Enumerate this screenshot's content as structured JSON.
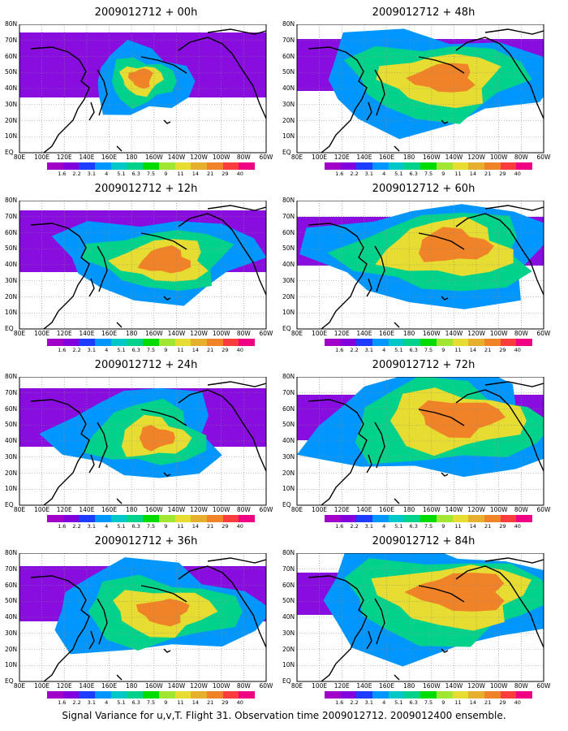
{
  "caption": "Signal Variance for u,v,T. Flight 31. Observation time 2009012712. 2009012400 ensemble.",
  "panels": [
    {
      "title": "2009012712 + 00h",
      "level": 0
    },
    {
      "title": "2009012712 + 48h",
      "level": 4
    },
    {
      "title": "2009012712 + 12h",
      "level": 1
    },
    {
      "title": "2009012712 + 60h",
      "level": 5
    },
    {
      "title": "2009012712 + 24h",
      "level": 2
    },
    {
      "title": "2009012712 + 72h",
      "level": 6
    },
    {
      "title": "2009012712 + 36h",
      "level": 3
    },
    {
      "title": "2009012712 + 84h",
      "level": 7
    }
  ],
  "lat_labels": [
    "80N",
    "70N",
    "60N",
    "50N",
    "40N",
    "30N",
    "20N",
    "10N",
    "EQ"
  ],
  "lon_labels": [
    "80E",
    "100E",
    "120E",
    "140E",
    "160E",
    "180",
    "160W",
    "140W",
    "120W",
    "100W",
    "80W",
    "60W"
  ],
  "colorbar": {
    "labels": [
      "1.6",
      "2.2",
      "3.1",
      "4",
      "5.1",
      "6.3",
      "7.5",
      "9",
      "11",
      "14",
      "21",
      "29",
      "40"
    ],
    "colors": [
      "#a000c8",
      "#8200dc",
      "#1e3cff",
      "#0096ff",
      "#00c8c8",
      "#00d28c",
      "#00dc00",
      "#a0e632",
      "#e6dc32",
      "#e6af2d",
      "#f08228",
      "#fa3c3c",
      "#f00082"
    ]
  }
}
